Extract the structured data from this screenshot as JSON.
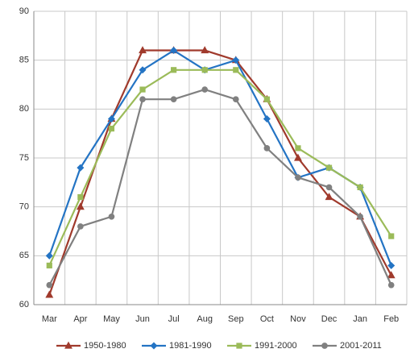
{
  "chart_data": {
    "type": "line",
    "categories": [
      "Mar",
      "Apr",
      "May",
      "Jun",
      "Jul",
      "Aug",
      "Sep",
      "Oct",
      "Nov",
      "Dec",
      "Jan",
      "Feb"
    ],
    "series": [
      {
        "name": "1950-1980",
        "color": "#a03a2c",
        "marker": "triangle",
        "values": [
          61,
          70,
          79,
          86,
          86,
          86,
          85,
          81,
          75,
          71,
          69,
          63
        ]
      },
      {
        "name": "1981-1990",
        "color": "#2474c4",
        "marker": "diamond",
        "values": [
          65,
          74,
          79,
          84,
          86,
          84,
          85,
          79,
          73,
          74,
          72,
          64
        ]
      },
      {
        "name": "1991-2000",
        "color": "#9bbb59",
        "marker": "square",
        "values": [
          64,
          71,
          78,
          82,
          84,
          84,
          84,
          81,
          76,
          74,
          72,
          67
        ]
      },
      {
        "name": "2001-2011",
        "color": "#808080",
        "marker": "circle",
        "values": [
          62,
          68,
          69,
          81,
          81,
          82,
          81,
          76,
          73,
          72,
          69,
          62
        ]
      }
    ],
    "ylim": [
      60,
      90
    ],
    "yticks": [
      60,
      65,
      70,
      75,
      80,
      85,
      90
    ],
    "grid": true,
    "legend": "bottom"
  }
}
